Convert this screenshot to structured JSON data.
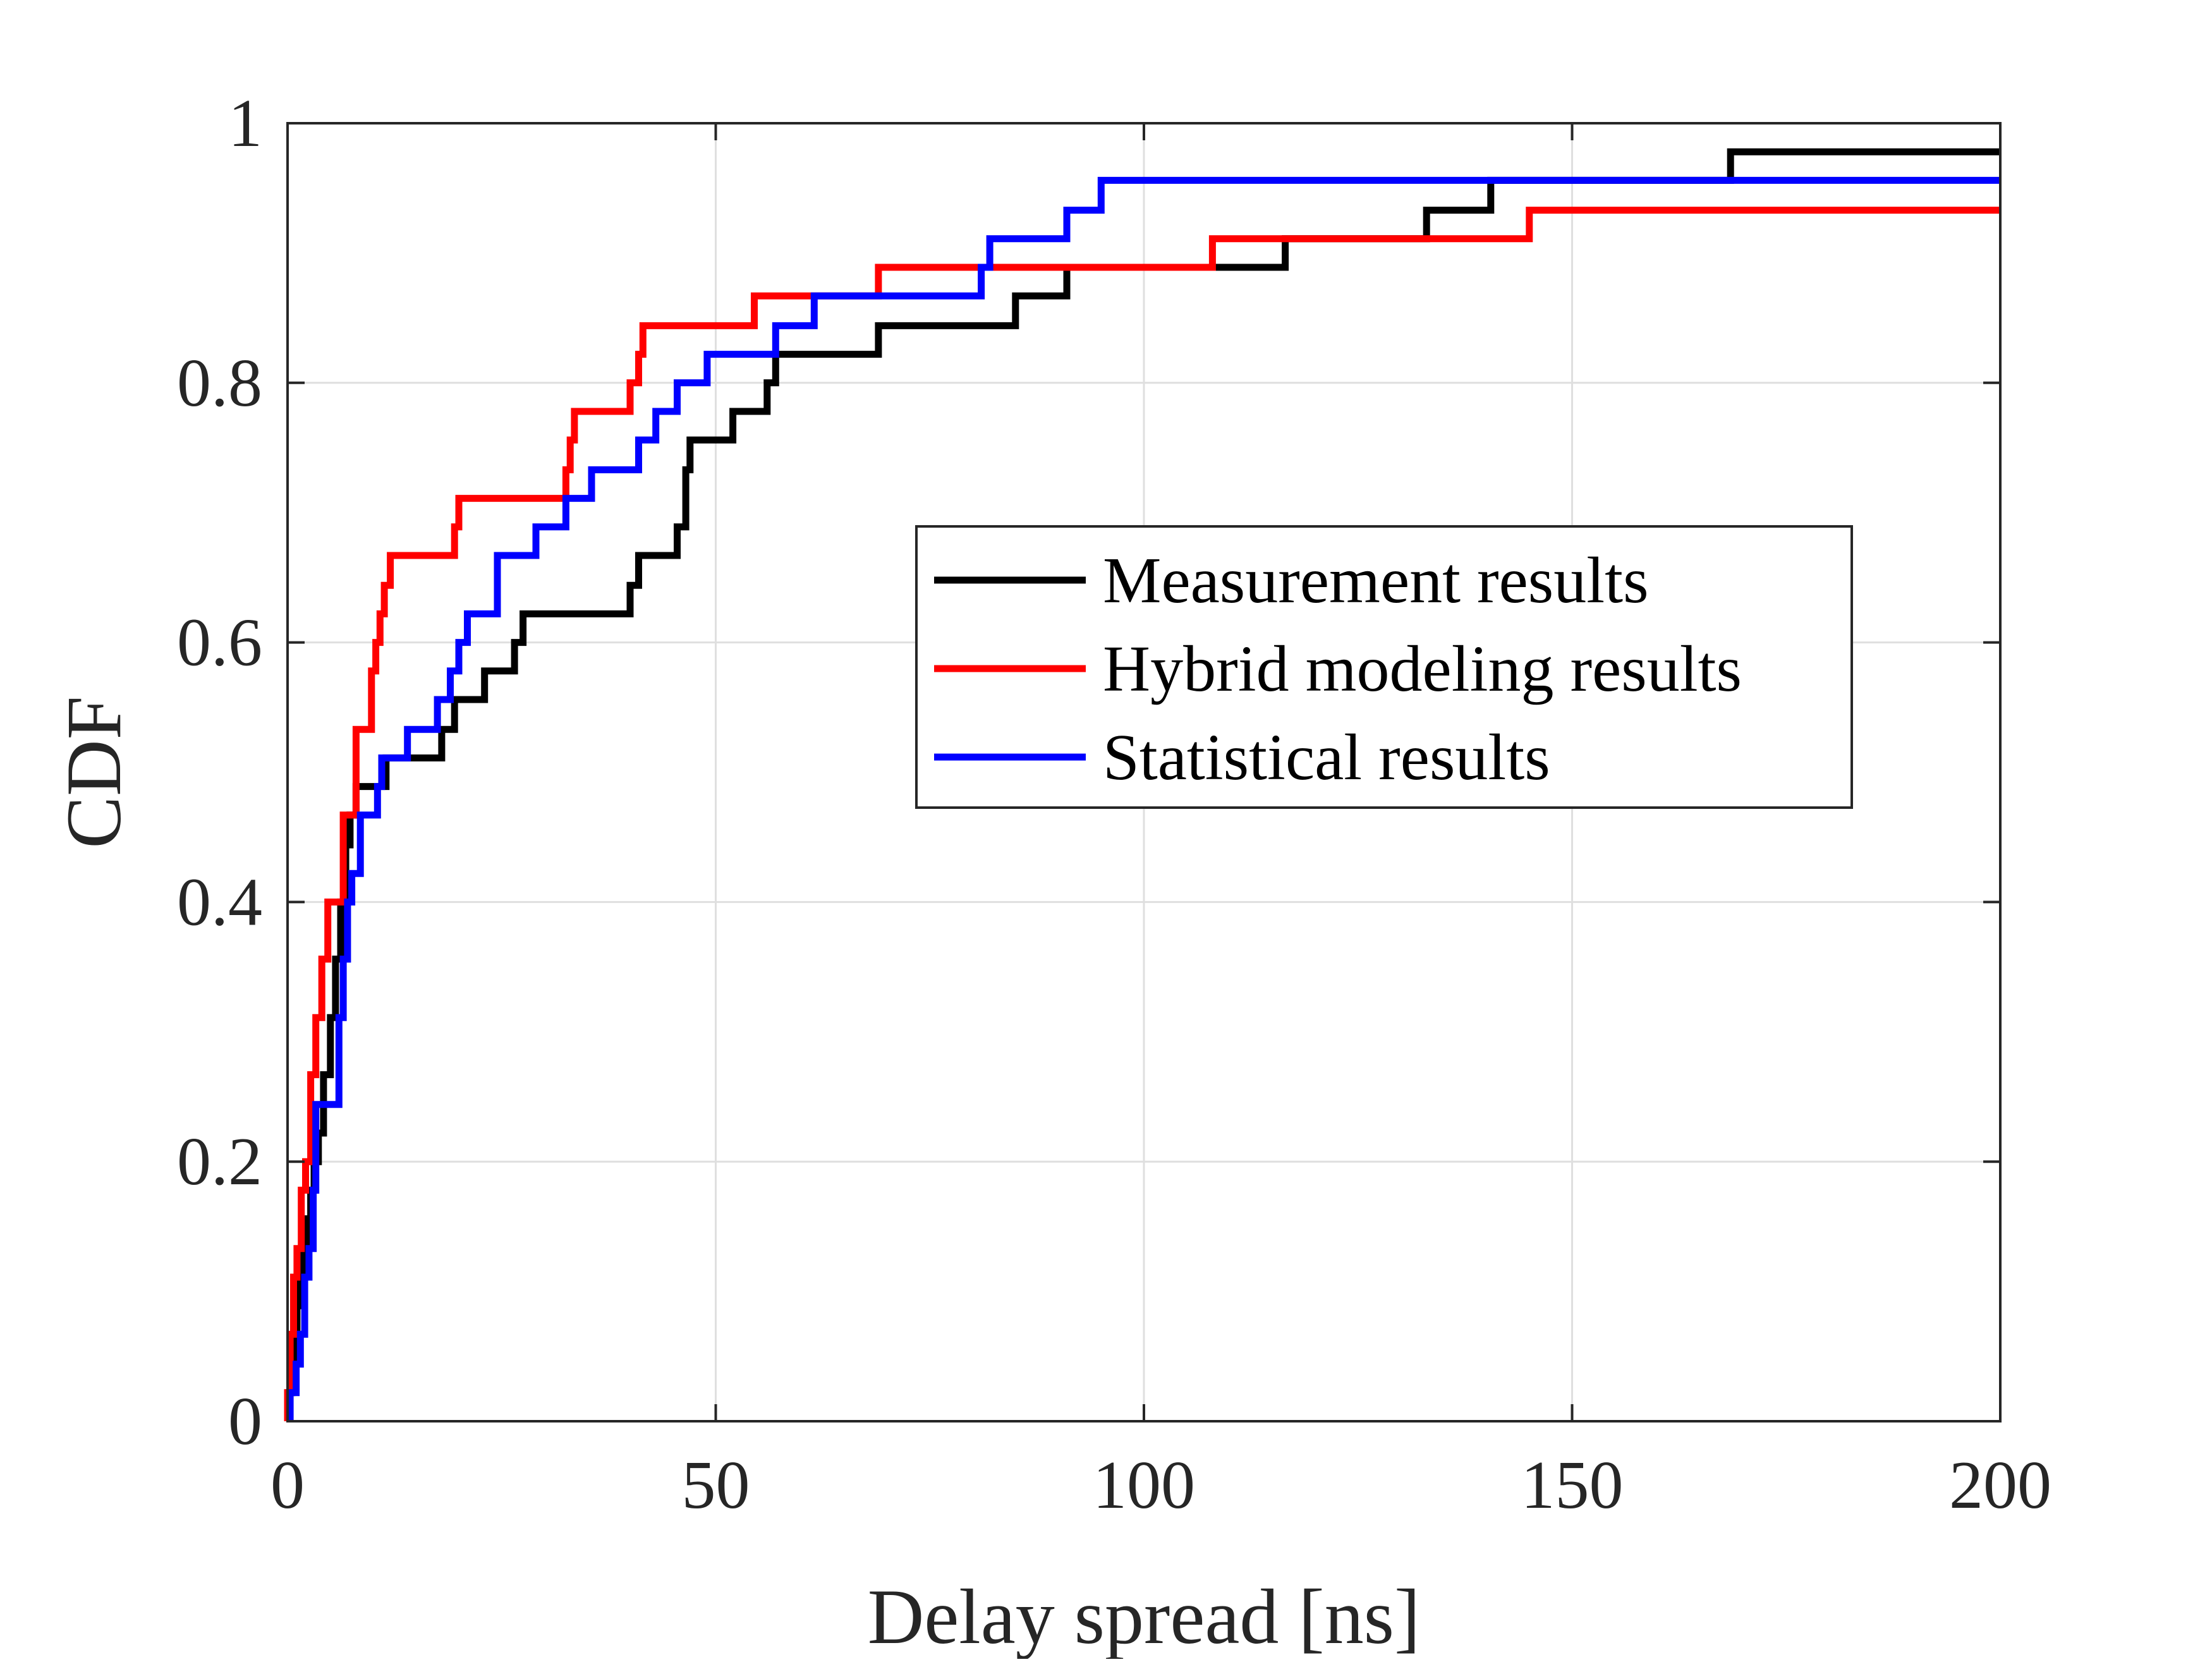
{
  "chart_data": {
    "type": "line",
    "title": "",
    "xlabel": "Delay spread [ns]",
    "ylabel": "CDF",
    "xlim": [
      0,
      200
    ],
    "ylim": [
      0,
      1
    ],
    "grid": true,
    "x_ticks": [
      0,
      50,
      100,
      150,
      200
    ],
    "x_tick_labels": [
      "0",
      "50",
      "100",
      "150",
      "200"
    ],
    "y_ticks": [
      0,
      0.2,
      0.4,
      0.6,
      0.8,
      1
    ],
    "y_tick_labels": [
      "0",
      "0.2",
      "0.4",
      "0.6",
      "0.8",
      "1"
    ],
    "legend_position": "center-right",
    "series": [
      {
        "name": "Measurement results",
        "color": "#000000",
        "step": true,
        "x": [
          0.2,
          0.5,
          0.8,
          1.1,
          1.5,
          1.9,
          2.3,
          2.7,
          3.1,
          3.6,
          4.2,
          5.0,
          5.6,
          6.2,
          6.8,
          7.3,
          8.0,
          9.5,
          11.5,
          14.0,
          18.0,
          19.5,
          23.0,
          25.0,
          26.5,
          27.5,
          40.0,
          41.0,
          45.5,
          46.5,
          47.0,
          49.0,
          52.0,
          56.0,
          57.0,
          69.0,
          85.0,
          91.0,
          108.0,
          116.5,
          133.0,
          140.5,
          168.5,
          200.0
        ],
        "y": [
          0.022,
          0.044,
          0.067,
          0.089,
          0.111,
          0.133,
          0.156,
          0.178,
          0.2,
          0.222,
          0.267,
          0.311,
          0.356,
          0.4,
          0.444,
          0.467,
          0.489,
          0.489,
          0.511,
          0.511,
          0.533,
          0.556,
          0.578,
          0.578,
          0.6,
          0.622,
          0.644,
          0.667,
          0.689,
          0.733,
          0.756,
          0.756,
          0.778,
          0.8,
          0.822,
          0.844,
          0.867,
          0.889,
          0.889,
          0.911,
          0.933,
          0.956,
          0.978,
          0.978
        ]
      },
      {
        "name": "Hybrid modeling results",
        "color": "#ff0000",
        "step": true,
        "x": [
          0.0,
          0.3,
          0.7,
          1.1,
          1.6,
          2.1,
          2.7,
          3.3,
          4.0,
          4.7,
          5.5,
          6.5,
          7.3,
          8.0,
          9.0,
          9.8,
          10.3,
          10.8,
          11.3,
          12.0,
          19.5,
          20.0,
          32.5,
          33.0,
          33.5,
          40.0,
          41.0,
          41.5,
          54.5,
          69.0,
          108.0,
          145.0,
          200.0
        ],
        "y": [
          0.022,
          0.067,
          0.111,
          0.133,
          0.178,
          0.2,
          0.267,
          0.311,
          0.356,
          0.4,
          0.4,
          0.467,
          0.467,
          0.533,
          0.533,
          0.578,
          0.6,
          0.622,
          0.644,
          0.667,
          0.689,
          0.711,
          0.733,
          0.756,
          0.778,
          0.8,
          0.822,
          0.844,
          0.867,
          0.889,
          0.911,
          0.933,
          0.933
        ]
      },
      {
        "name": "Statistical results",
        "color": "#0000ff",
        "step": true,
        "x": [
          0.3,
          1.0,
          1.5,
          2.0,
          2.5,
          3.0,
          3.3,
          5.5,
          6.0,
          6.5,
          7.0,
          7.5,
          8.5,
          10.5,
          11.0,
          14.0,
          17.5,
          19.0,
          20.0,
          21.0,
          24.5,
          29.0,
          32.5,
          35.5,
          41.0,
          43.0,
          45.5,
          46.5,
          49.0,
          57.0,
          61.5,
          81.0,
          82.0,
          91.0,
          95.0,
          200.0
        ],
        "y": [
          0.022,
          0.044,
          0.067,
          0.111,
          0.133,
          0.178,
          0.244,
          0.244,
          0.311,
          0.356,
          0.4,
          0.422,
          0.467,
          0.489,
          0.511,
          0.533,
          0.556,
          0.578,
          0.6,
          0.622,
          0.667,
          0.689,
          0.711,
          0.733,
          0.756,
          0.778,
          0.8,
          0.8,
          0.822,
          0.844,
          0.867,
          0.889,
          0.911,
          0.933,
          0.956,
          0.956
        ]
      }
    ]
  }
}
